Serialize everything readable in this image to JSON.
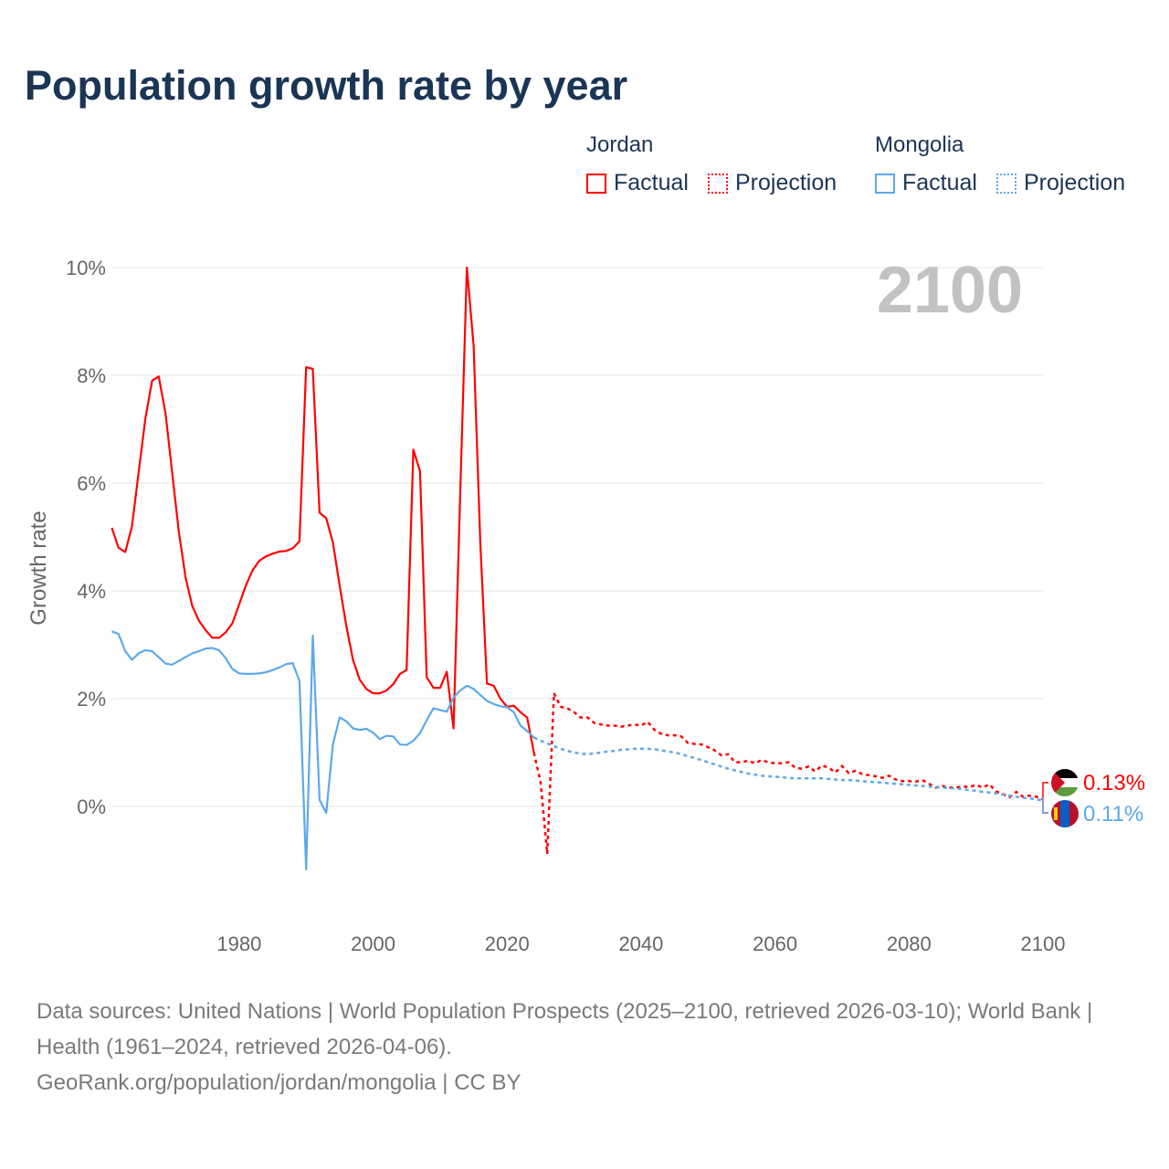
{
  "title": "Population growth rate by year",
  "legend": {
    "groups": [
      {
        "name": "Jordan",
        "color": "#ff0000",
        "factual": "Factual",
        "projection": "Projection"
      },
      {
        "name": "Mongolia",
        "color": "#5ea8ea",
        "factual": "Factual",
        "projection": "Projection"
      }
    ]
  },
  "footer": {
    "line1": "Data sources: United Nations | World Population Prospects (2025–2100, retrieved 2026-03-10); World Bank | Health (1961–2024, retrieved 2026-04-06).",
    "line2": "GeoRank.org/population/jordan/mongolia | CC BY"
  },
  "chart_data": {
    "type": "line",
    "title": "Population growth rate by year",
    "ylabel": "Growth rate",
    "xlabel": "",
    "current_year_label": "2100",
    "xlim": [
      1961,
      2100
    ],
    "ylim": [
      -2,
      10
    ],
    "x_ticks": [
      1980,
      2000,
      2020,
      2040,
      2060,
      2080,
      2100
    ],
    "y_ticks": [
      0,
      2,
      4,
      6,
      8,
      10
    ],
    "y_tick_labels": [
      "0%",
      "2%",
      "4%",
      "6%",
      "8%",
      "10%"
    ],
    "grid": true,
    "end_labels": [
      "0.13%",
      "0.11%"
    ],
    "series": [
      {
        "name": "Jordan",
        "color": "#ff0000",
        "factual_start": 1961,
        "factual": [
          5.17,
          4.8,
          4.72,
          5.2,
          6.2,
          7.2,
          7.9,
          7.98,
          7.3,
          6.2,
          5.1,
          4.25,
          3.72,
          3.45,
          3.27,
          3.13,
          3.13,
          3.23,
          3.4,
          3.75,
          4.1,
          4.38,
          4.56,
          4.64,
          4.69,
          4.73,
          4.74,
          4.79,
          4.92,
          8.15,
          8.12,
          5.45,
          5.35,
          4.9,
          4.1,
          3.35,
          2.72,
          2.35,
          2.18,
          2.1,
          2.1,
          2.15,
          2.27,
          2.46,
          2.53,
          6.62,
          6.22,
          2.4,
          2.2,
          2.2,
          2.5,
          1.45,
          5.8,
          10.0,
          8.55,
          4.9,
          2.28,
          2.24,
          2.0,
          1.85,
          1.87,
          1.75,
          1.65,
          1.0
        ],
        "projection_start": 2024,
        "projection": [
          1.0,
          0.45,
          -0.88,
          2.1,
          1.85,
          1.82,
          1.75,
          1.65,
          1.65,
          1.55,
          1.52,
          1.5,
          1.5,
          1.48,
          1.5,
          1.52,
          1.5,
          1.57,
          1.42,
          1.35,
          1.32,
          1.32,
          1.3,
          1.18,
          1.16,
          1.15,
          1.1,
          1.04,
          0.95,
          0.97,
          0.82,
          0.82,
          0.85,
          0.8,
          0.86,
          0.82,
          0.8,
          0.8,
          0.82,
          0.72,
          0.7,
          0.74,
          0.65,
          0.76,
          0.72,
          0.63,
          0.75,
          0.62,
          0.66,
          0.6,
          0.58,
          0.56,
          0.53,
          0.57,
          0.5,
          0.47,
          0.47,
          0.46,
          0.49,
          0.42,
          0.35,
          0.38,
          0.35,
          0.35,
          0.37,
          0.36,
          0.4,
          0.35,
          0.41,
          0.28,
          0.23,
          0.17,
          0.27,
          0.18,
          0.2,
          0.18,
          0.13
        ]
      },
      {
        "name": "Mongolia",
        "color": "#5ea8ea",
        "factual_start": 1961,
        "factual": [
          3.25,
          3.2,
          2.88,
          2.72,
          2.84,
          2.9,
          2.88,
          2.77,
          2.65,
          2.63,
          2.7,
          2.77,
          2.84,
          2.88,
          2.93,
          2.94,
          2.9,
          2.75,
          2.55,
          2.47,
          2.46,
          2.46,
          2.47,
          2.49,
          2.53,
          2.58,
          2.64,
          2.66,
          2.33,
          -1.17,
          3.17,
          0.12,
          -0.12,
          1.15,
          1.65,
          1.58,
          1.45,
          1.42,
          1.44,
          1.37,
          1.25,
          1.31,
          1.3,
          1.15,
          1.14,
          1.22,
          1.36,
          1.6,
          1.82,
          1.79,
          1.76,
          2.02,
          2.15,
          2.24,
          2.18,
          2.07,
          1.96,
          1.9,
          1.86,
          1.84,
          1.75,
          1.5,
          1.4,
          1.28
        ],
        "projection_start": 2024,
        "projection": [
          1.28,
          1.22,
          1.17,
          1.12,
          1.07,
          1.03,
          1.0,
          0.98,
          0.97,
          0.98,
          1.0,
          1.02,
          1.03,
          1.05,
          1.06,
          1.07,
          1.07,
          1.07,
          1.06,
          1.04,
          1.02,
          1.0,
          0.97,
          0.93,
          0.9,
          0.86,
          0.82,
          0.78,
          0.74,
          0.7,
          0.67,
          0.64,
          0.61,
          0.59,
          0.57,
          0.56,
          0.55,
          0.54,
          0.53,
          0.52,
          0.52,
          0.52,
          0.52,
          0.52,
          0.51,
          0.5,
          0.49,
          0.49,
          0.48,
          0.47,
          0.46,
          0.45,
          0.44,
          0.43,
          0.42,
          0.41,
          0.4,
          0.39,
          0.38,
          0.37,
          0.36,
          0.35,
          0.34,
          0.33,
          0.32,
          0.3,
          0.29,
          0.27,
          0.26,
          0.24,
          0.22,
          0.2,
          0.18,
          0.16,
          0.15,
          0.13,
          0.11
        ]
      }
    ]
  }
}
